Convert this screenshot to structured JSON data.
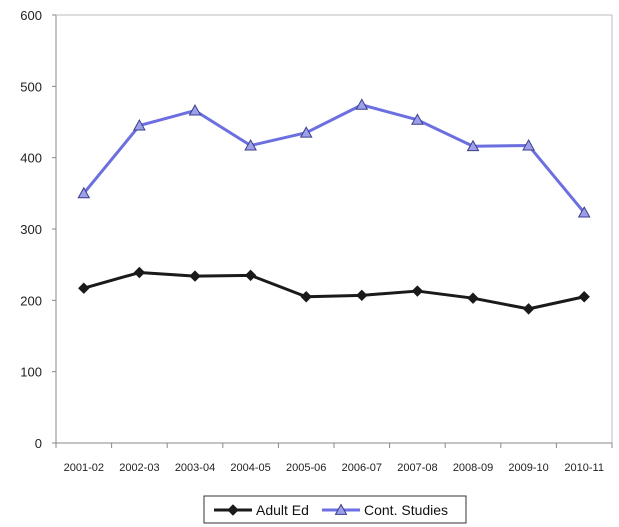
{
  "chart_data": {
    "type": "line",
    "title": "",
    "xlabel": "",
    "ylabel": "",
    "ylim": [
      0,
      600
    ],
    "yticks": [
      0,
      100,
      200,
      300,
      400,
      500,
      600
    ],
    "categories": [
      "2001-02",
      "2002-03",
      "2003-04",
      "2004-05",
      "2005-06",
      "2006-07",
      "2007-08",
      "2008-09",
      "2009-10",
      "2010-11"
    ],
    "grid": false,
    "legend_position": "bottom-center",
    "series": [
      {
        "name": "Adult Ed",
        "color": "#1a1a1a",
        "marker": "diamond",
        "values": [
          217,
          239,
          234,
          235,
          205,
          207,
          213,
          203,
          188,
          205
        ]
      },
      {
        "name": "Cont. Studies",
        "color": "#6b6fe0",
        "marker": "triangle",
        "values": [
          350,
          445,
          466,
          417,
          435,
          474,
          453,
          416,
          417,
          323
        ]
      }
    ]
  }
}
